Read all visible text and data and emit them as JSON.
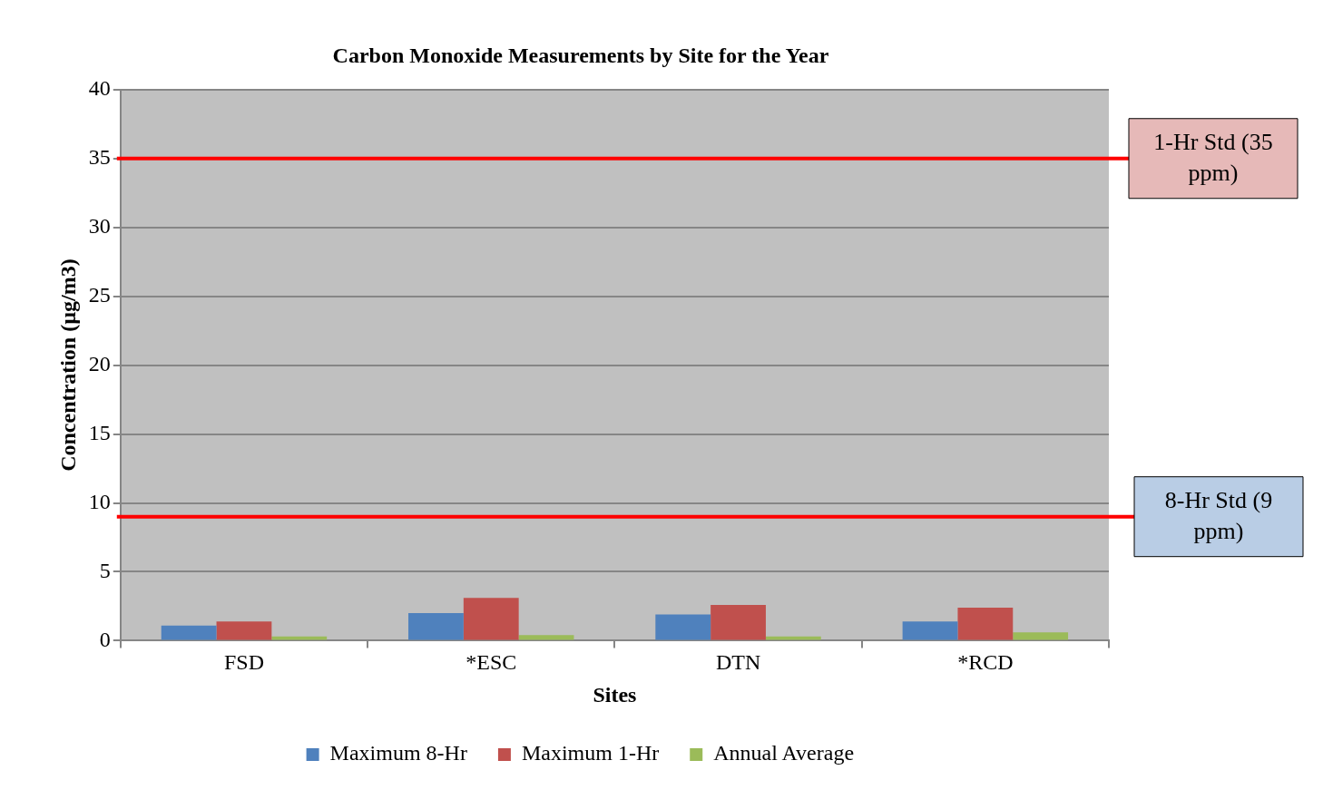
{
  "chart_data": {
    "type": "bar",
    "title": "Carbon Monoxide Measurements by Site for the Year",
    "xlabel": "Sites",
    "ylabel": "Concentration (µg/m3)",
    "categories": [
      "FSD",
      "*ESC",
      "DTN",
      "*RCD"
    ],
    "series": [
      {
        "name": "Maximum 8-Hr",
        "color": "#4f81bd",
        "values": [
          1.1,
          2.0,
          1.9,
          1.4
        ]
      },
      {
        "name": "Maximum 1-Hr",
        "color": "#c0504d",
        "values": [
          1.4,
          3.1,
          2.6,
          2.4
        ]
      },
      {
        "name": "Annual Average",
        "color": "#9bbb59",
        "values": [
          0.3,
          0.4,
          0.3,
          0.6
        ]
      }
    ],
    "ylim": [
      0,
      40
    ],
    "yticks": [
      0,
      5,
      10,
      15,
      20,
      25,
      30,
      35,
      40
    ],
    "grid": "y",
    "legend": "bottom",
    "ref_lines": [
      {
        "axis": "y",
        "value": 35,
        "label": "1-Hr Std (35 ppm)",
        "color": "#ff0000"
      },
      {
        "axis": "y",
        "value": 9,
        "label": "8-Hr Std (9 ppm)",
        "color": "#ff0000"
      }
    ]
  }
}
